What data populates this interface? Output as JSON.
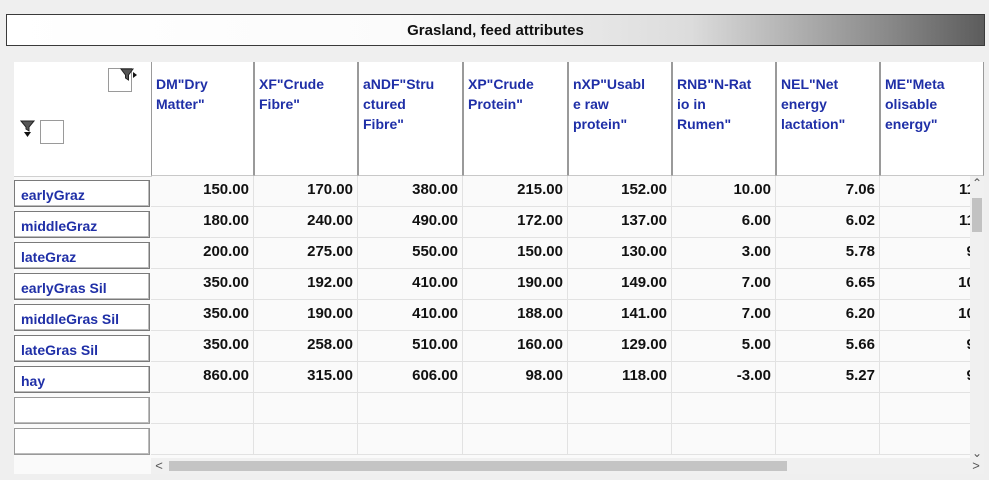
{
  "title": "Grasland, feed attributes",
  "columns": [
    "DM\"Dry\nMatter\"",
    "XF\"Crude\nFibre\"",
    "aNDF\"Stru\nctured\nFibre\"",
    "XP\"Crude\nProtein\"",
    "nXP\"Usabl\ne raw\nprotein\"",
    "RNB\"N-Rat\nio in\nRumen\"",
    "NEL\"Net\nenergy\nlactation\"",
    "ME\"Meta\nolisable\nenergy\""
  ],
  "rows": [
    {
      "label": "earlyGraz",
      "values": [
        "150.00",
        "170.00",
        "380.00",
        "215.00",
        "152.00",
        "10.00",
        "7.06",
        "11."
      ]
    },
    {
      "label": "middleGraz",
      "values": [
        "180.00",
        "240.00",
        "490.00",
        "172.00",
        "137.00",
        "6.00",
        "6.02",
        "11."
      ]
    },
    {
      "label": "lateGraz",
      "values": [
        "200.00",
        "275.00",
        "550.00",
        "150.00",
        "130.00",
        "3.00",
        "5.78",
        "9."
      ]
    },
    {
      "label": "earlyGras Sil",
      "values": [
        "350.00",
        "192.00",
        "410.00",
        "190.00",
        "149.00",
        "7.00",
        "6.65",
        "10."
      ]
    },
    {
      "label": "middleGras Sil",
      "values": [
        "350.00",
        "190.00",
        "410.00",
        "188.00",
        "141.00",
        "7.00",
        "6.20",
        "10."
      ]
    },
    {
      "label": "lateGras Sil",
      "values": [
        "350.00",
        "258.00",
        "510.00",
        "160.00",
        "129.00",
        "5.00",
        "5.66",
        "9."
      ]
    },
    {
      "label": "hay",
      "values": [
        "860.00",
        "315.00",
        "606.00",
        "98.00",
        "118.00",
        "-3.00",
        "5.27",
        "9."
      ]
    }
  ],
  "scroll": {
    "up_glyph": "⌃",
    "down_glyph": "⌄",
    "left_glyph": "<",
    "right_glyph": ">"
  },
  "icons": {
    "column_filter": "funnel-right-arrow-icon",
    "row_filter": "funnel-down-arrow-icon"
  }
}
